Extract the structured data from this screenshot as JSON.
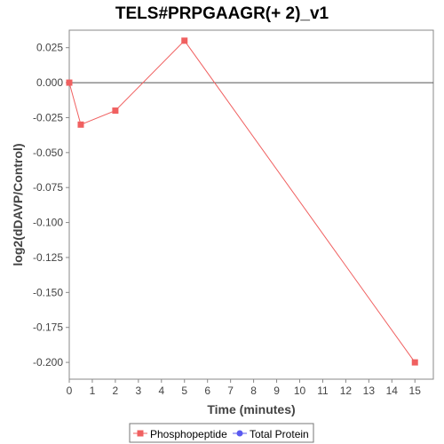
{
  "chart_data": {
    "type": "line",
    "title": "TELS#PRPGAAGR(+ 2)_v1",
    "xlabel": "Time (minutes)",
    "ylabel": "log2(dDAVP/Control)",
    "xlim": [
      0,
      15.8
    ],
    "ylim": [
      -0.212,
      0.0375
    ],
    "xticks": [
      0,
      1,
      2,
      3,
      4,
      5,
      6,
      7,
      8,
      9,
      10,
      11,
      12,
      13,
      14,
      15
    ],
    "xtick_labels": [
      "0",
      "1",
      "2",
      "3",
      "4",
      "5",
      "6",
      "7",
      "8",
      "9",
      "10",
      "11",
      "12",
      "13",
      "14",
      "15"
    ],
    "yticks": [
      0.025,
      0.0,
      -0.025,
      -0.05,
      -0.075,
      -0.1,
      -0.125,
      -0.15,
      -0.175,
      -0.2
    ],
    "ytick_labels": [
      "0.025",
      "0.000",
      "-0.025",
      "-0.050",
      "-0.075",
      "-0.100",
      "-0.125",
      "-0.150",
      "-0.175",
      "-0.200"
    ],
    "zero_line": true,
    "grid": false,
    "legend_position": "bottom",
    "series": [
      {
        "name": "Phosphopeptide",
        "color": "#f06060",
        "marker": "square",
        "x": [
          0,
          0.5,
          2,
          5,
          15
        ],
        "y": [
          0.0,
          -0.03,
          -0.02,
          0.03,
          -0.2
        ]
      },
      {
        "name": "Total Protein",
        "color": "#5a5af0",
        "marker": "circle",
        "x": [],
        "y": []
      }
    ]
  }
}
